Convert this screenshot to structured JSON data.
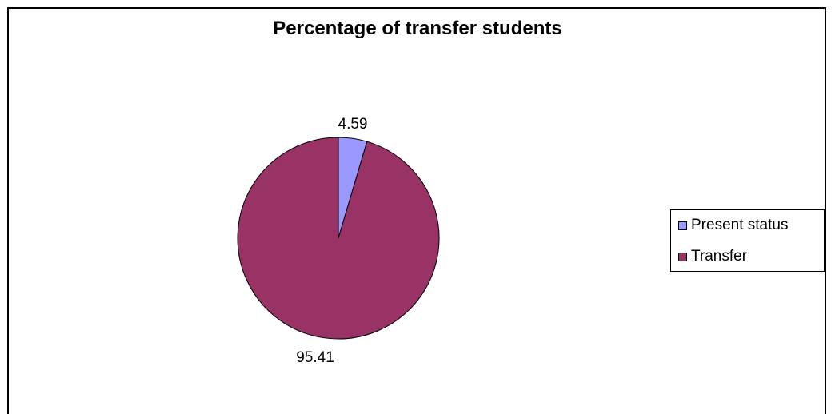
{
  "chart_data": {
    "type": "pie",
    "title": "Percentage of transfer students",
    "categories": [
      "Present status",
      "Transfer"
    ],
    "values": [
      4.59,
      95.41
    ],
    "data_labels": [
      "4.59",
      "95.41"
    ],
    "colors": [
      "#9999ff",
      "#993366"
    ],
    "legend_position": "right",
    "start_angle_deg": 0,
    "direction": "clockwise"
  }
}
